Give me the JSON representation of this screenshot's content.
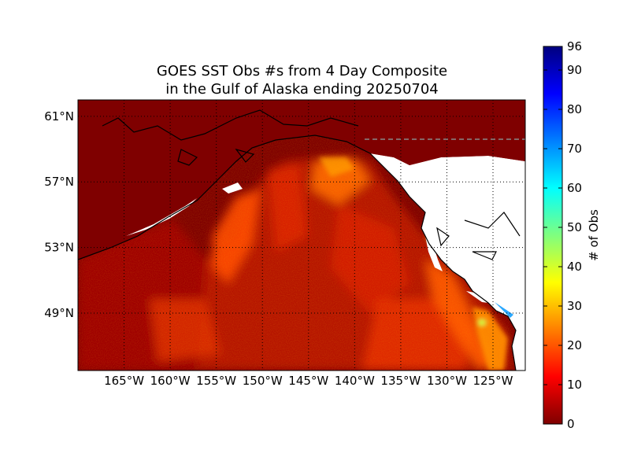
{
  "title": {
    "line1": "GOES SST Obs #s from 4 Day Composite",
    "line2": "in the Gulf of Alaska ending 20250704"
  },
  "map": {
    "region": "Gulf of Alaska",
    "lon_range": [
      -170,
      -121.5
    ],
    "lat_range": [
      45.5,
      62
    ],
    "background_color": "#7f0000",
    "land_color": "#ffffff",
    "gridline_style": "dotted"
  },
  "lat_ticks": [
    {
      "value": 61,
      "label": "61°N"
    },
    {
      "value": 57,
      "label": "57°N"
    },
    {
      "value": 53,
      "label": "53°N"
    },
    {
      "value": 49,
      "label": "49°N"
    }
  ],
  "lon_ticks": [
    {
      "value": -165,
      "label": "165°W"
    },
    {
      "value": -160,
      "label": "160°W"
    },
    {
      "value": -155,
      "label": "155°W"
    },
    {
      "value": -150,
      "label": "150°W"
    },
    {
      "value": -145,
      "label": "145°W"
    },
    {
      "value": -140,
      "label": "140°W"
    },
    {
      "value": -135,
      "label": "135°W"
    },
    {
      "value": -130,
      "label": "130°W"
    },
    {
      "value": -125,
      "label": "125°W"
    }
  ],
  "colorbar": {
    "label": "# of Obs",
    "min": 0,
    "max": 96,
    "ticks": [
      0,
      10,
      20,
      30,
      40,
      50,
      60,
      70,
      80,
      90,
      96
    ],
    "colormap": "jet",
    "colors": [
      "#00007f",
      "#0000ff",
      "#007fff",
      "#00ffff",
      "#7fff7f",
      "#ffff00",
      "#ff7f00",
      "#ff0000",
      "#7f0000"
    ]
  }
}
